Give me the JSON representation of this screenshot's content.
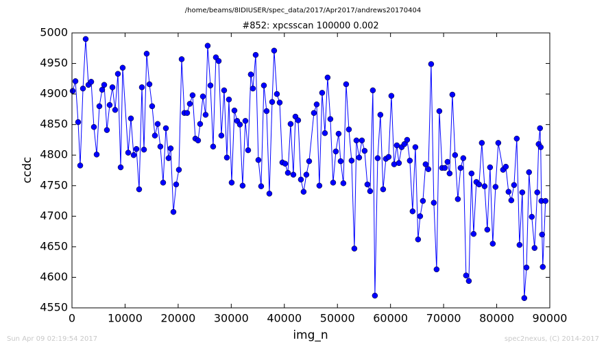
{
  "chart_data": {
    "type": "line",
    "suptitle": "/home/beams/8IDIUSER/spec_data/2017/Apr2017/andrews20170404",
    "title": "#852: xpcsscan 100000 0.002",
    "x_label": "img_n",
    "y_label": "ccdc",
    "footer_left": "Sun Apr 09 02:19:54 2017",
    "footer_right": "spec2nexus, (C) 2014-2017",
    "xlim": [
      0,
      90000
    ],
    "ylim": [
      4550,
      5000
    ],
    "xticks": [
      0,
      10000,
      20000,
      30000,
      40000,
      50000,
      60000,
      70000,
      80000,
      90000
    ],
    "yticks": [
      4550,
      4600,
      4650,
      4700,
      4750,
      4800,
      4850,
      4900,
      4950,
      5000
    ],
    "grid": false,
    "x": [
      130,
      650,
      1160,
      1550,
      2070,
      2580,
      3100,
      3620,
      4130,
      4650,
      5160,
      5680,
      6070,
      6580,
      7100,
      7620,
      8130,
      8650,
      9170,
      9550,
      10590,
      11100,
      11620,
      12140,
      12650,
      13170,
      13560,
      14070,
      14590,
      15100,
      15620,
      16140,
      16650,
      17170,
      17690,
      18200,
      18590,
      19110,
      19620,
      20140,
      20660,
      21170,
      21690,
      22200,
      22720,
      23240,
      23750,
      24140,
      24660,
      25170,
      25560,
      26080,
      26590,
      27110,
      27630,
      28140,
      28660,
      29180,
      29560,
      30080,
      30600,
      31110,
      31630,
      32140,
      32660,
      33180,
      33690,
      34080,
      34600,
      35110,
      35630,
      36150,
      36660,
      37180,
      37700,
      38080,
      38600,
      39120,
      39630,
      40150,
      40670,
      41180,
      41700,
      42090,
      42600,
      43120,
      43630,
      44150,
      44670,
      45570,
      46090,
      46600,
      47120,
      47640,
      48150,
      48670,
      49190,
      49700,
      50220,
      50610,
      51120,
      51640,
      52160,
      52670,
      53190,
      53580,
      54090,
      54610,
      55120,
      55640,
      56160,
      56670,
      57060,
      57580,
      58090,
      58610,
      59130,
      59640,
      60160,
      60680,
      61190,
      61580,
      62100,
      62610,
      63130,
      63640,
      64160,
      64680,
      65190,
      65580,
      66100,
      66610,
      67130,
      67650,
      68160,
      68680,
      69200,
      69710,
      70230,
      70740,
      71130,
      71650,
      72160,
      72680,
      73200,
      73710,
      74230,
      74750,
      75260,
      75650,
      76170,
      76680,
      77200,
      77720,
      78230,
      78750,
      79260,
      79780,
      80300,
      81200,
      81720,
      82230,
      82750,
      83270,
      83780,
      84300,
      84820,
      85200,
      85610,
      86090,
      86610,
      87130,
      87640,
      87900,
      88160,
      88290,
      88420,
      88550,
      88680,
      89190
    ],
    "series": [
      {
        "name": "ccdc",
        "color": "#0000ff",
        "marker_color": "#0000ff",
        "values": [
          4905,
          4921,
          4854,
          4783,
          4909,
          4990,
          4915,
          4920,
          4846,
          4801,
          4880,
          4907,
          4915,
          4841,
          4882,
          4911,
          4874,
          4933,
          4780,
          4943,
          4804,
          4860,
          4800,
          4810,
          4744,
          4911,
          4809,
          4966,
          4916,
          4880,
          4832,
          4851,
          4814,
          4755,
          4844,
          4795,
          4811,
          4707,
          4752,
          4776,
          4957,
          4869,
          4869,
          4884,
          4898,
          4827,
          4824,
          4851,
          4896,
          4866,
          4979,
          4914,
          4814,
          4960,
          4954,
          4832,
          4906,
          4796,
          4891,
          4755,
          4873,
          4856,
          4850,
          4750,
          4856,
          4808,
          4932,
          4909,
          4964,
          4792,
          4749,
          4914,
          4872,
          4737,
          4887,
          4971,
          4900,
          4886,
          4788,
          4786,
          4771,
          4851,
          4768,
          4863,
          4857,
          4760,
          4740,
          4768,
          4790,
          4869,
          4883,
          4750,
          4902,
          4836,
          4927,
          4859,
          4755,
          4806,
          4835,
          4790,
          4754,
          4916,
          4842,
          4791,
          4647,
          4824,
          4796,
          4824,
          4807,
          4752,
          4741,
          4906,
          4570,
          4795,
          4866,
          4744,
          4794,
          4797,
          4897,
          4785,
          4816,
          4787,
          4813,
          4818,
          4825,
          4791,
          4708,
          4813,
          4662,
          4700,
          4725,
          4785,
          4777,
          4949,
          4722,
          4613,
          4872,
          4779,
          4779,
          4789,
          4770,
          4899,
          4800,
          4728,
          4779,
          4795,
          4603,
          4594,
          4770,
          4671,
          4756,
          4752,
          4820,
          4749,
          4678,
          4780,
          4655,
          4748,
          4820,
          4776,
          4781,
          4740,
          4726,
          4751,
          4827,
          4653,
          4739,
          4566,
          4616,
          4772,
          4699,
          4648,
          4739,
          4818,
          4844,
          4813,
          4725,
          4670,
          4617,
          4725
        ]
      }
    ]
  }
}
